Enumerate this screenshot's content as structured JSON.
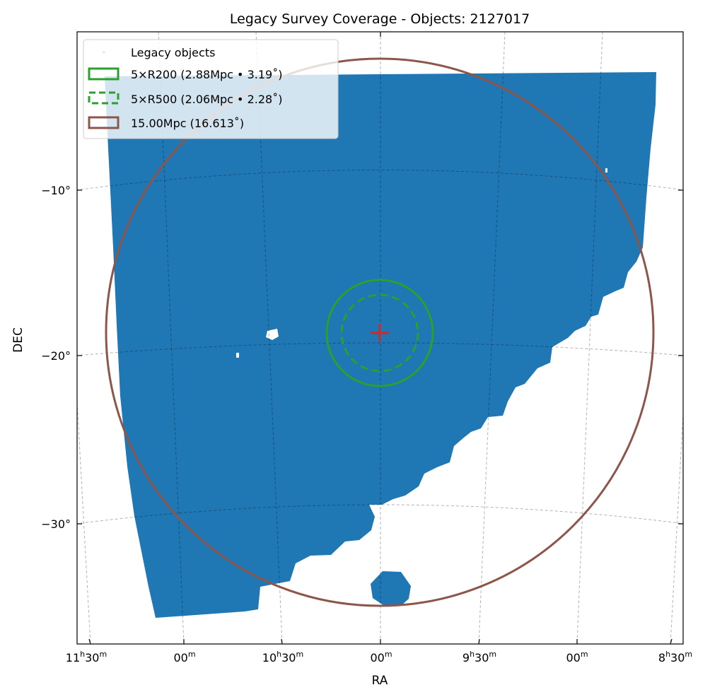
{
  "chart_data": {
    "type": "scatter",
    "title": "Legacy Survey Coverage - Objects: 2127017",
    "xlabel": "RA",
    "ylabel": "DEC",
    "projection": "gnomonic (tangent-plane sky map)",
    "center": {
      "ra_deg": 150.0,
      "dec_deg": -18.7
    },
    "x_ticks": [
      {
        "label_h": "11",
        "label_m": "30",
        "ra_deg": 172.5,
        "has_hours": true
      },
      {
        "label_h": "",
        "label_m": "00",
        "ra_deg": 165.0,
        "has_hours": false
      },
      {
        "label_h": "10",
        "label_m": "30",
        "ra_deg": 157.5,
        "has_hours": true
      },
      {
        "label_h": "",
        "label_m": "00",
        "ra_deg": 150.0,
        "has_hours": false
      },
      {
        "label_h": "9",
        "label_m": "30",
        "ra_deg": 142.5,
        "has_hours": true
      },
      {
        "label_h": "",
        "label_m": "00",
        "ra_deg": 135.0,
        "has_hours": false
      },
      {
        "label_h": "8",
        "label_m": "30",
        "ra_deg": 127.5,
        "has_hours": true
      }
    ],
    "y_ticks": [
      {
        "label": "−10°",
        "dec_deg": -10
      },
      {
        "label": "−20°",
        "dec_deg": -20
      },
      {
        "label": "−30°",
        "dec_deg": -30
      }
    ],
    "grid": true,
    "legend_position": "upper-left",
    "series": [
      {
        "name": "Legacy objects",
        "kind": "scatter-coverage",
        "color": "#1f77b4",
        "count": 2127017
      },
      {
        "name": "5×R200 (2.88Mpc • 3.19˚)",
        "kind": "circle",
        "radius_deg": 3.19,
        "linestyle": "solid",
        "color": "#2ca02c"
      },
      {
        "name": "5×R500 (2.06Mpc • 2.28˚)",
        "kind": "circle",
        "radius_deg": 2.28,
        "linestyle": "dashed",
        "color": "#2ca02c"
      },
      {
        "name": "15.00Mpc (16.613˚)",
        "kind": "circle",
        "radius_deg": 16.613,
        "linestyle": "solid",
        "color": "#8c564b"
      }
    ],
    "center_marker": {
      "symbol": "+",
      "color": "#d62728"
    }
  }
}
